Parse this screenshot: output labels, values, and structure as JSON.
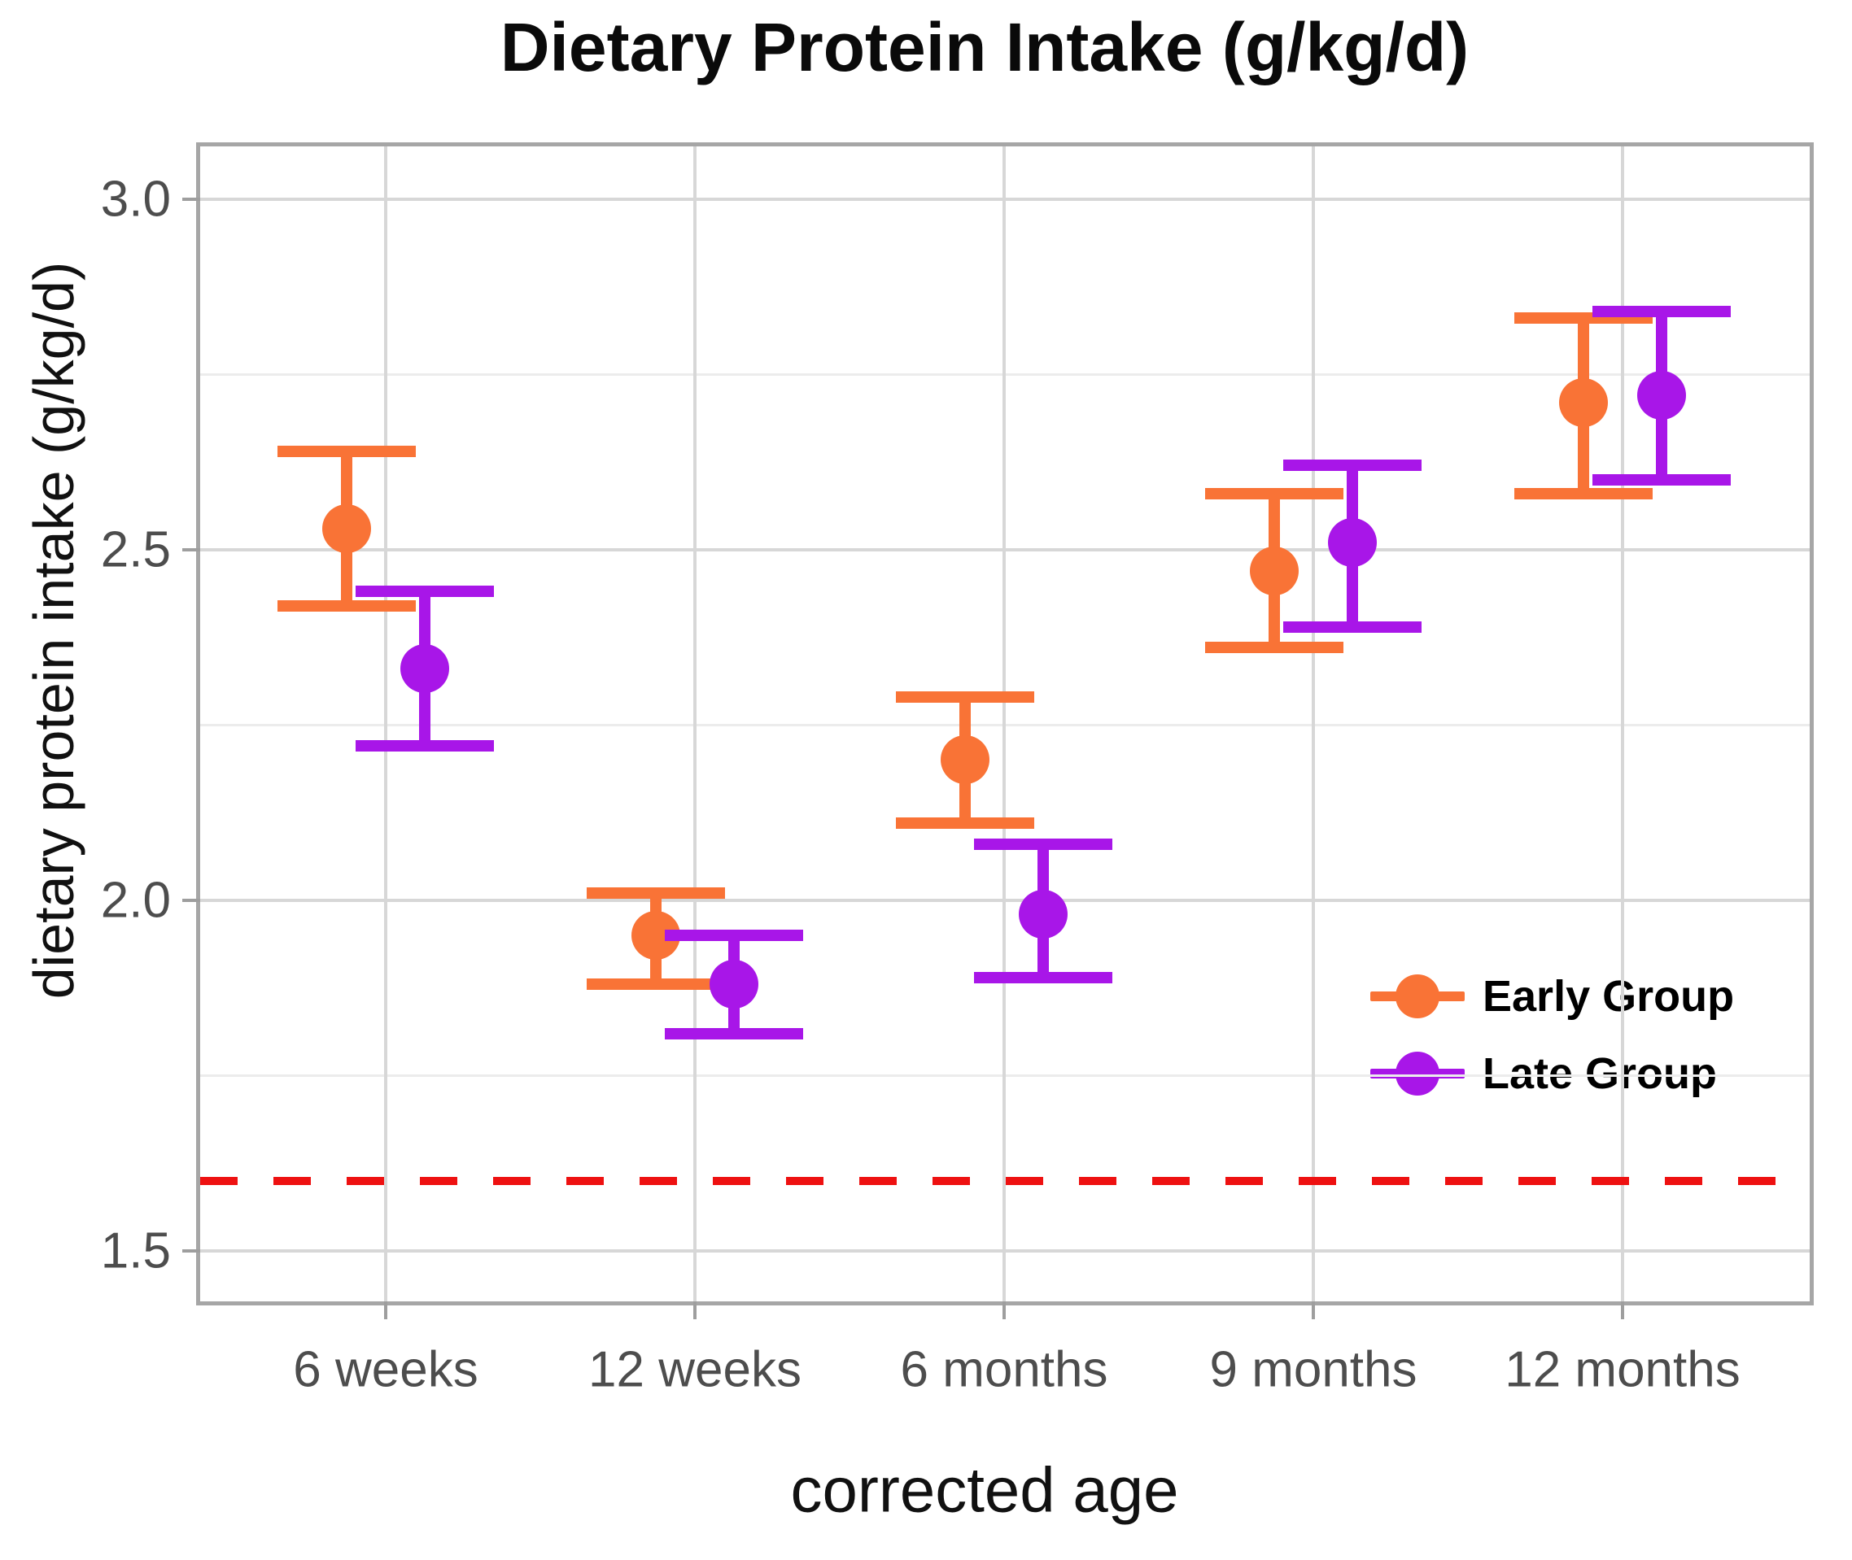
{
  "title": "Dietary Protein Intake (g/kg/d)",
  "axes": {
    "y": {
      "title": "dietary protein intake (g/kg/d)",
      "ticks": [
        {
          "label": "3.0",
          "value": 3.0
        },
        {
          "label": "2.5",
          "value": 2.5
        },
        {
          "label": "2.0",
          "value": 2.0
        },
        {
          "label": "1.5",
          "value": 1.5
        }
      ]
    },
    "x": {
      "title": "corrected age",
      "categories": [
        "6 weeks",
        "12 weeks",
        "6 months",
        "9 months",
        "12 months"
      ]
    }
  },
  "legend": {
    "items": [
      {
        "label": "Early Group",
        "color": "#F97336"
      },
      {
        "label": "Late Group",
        "color": "#A816E8"
      }
    ]
  },
  "colors": {
    "early_group": "#F97336",
    "late_group": "#A816E8",
    "reference_line": "#EE1111",
    "major_grid": "#D7D7D7",
    "minor_grid": "#ECECEC",
    "panel_border": "#A6A6A6",
    "tick_text": "#4D4D4D",
    "tick_mark": "#9E9E9E"
  },
  "chart_data": {
    "type": "scatter",
    "subtype": "dot-with-errorbars",
    "title": "Dietary Protein Intake (g/kg/d)",
    "xlabel": "corrected age",
    "ylabel": "dietary protein intake (g/kg/d)",
    "categories": [
      "6 weeks",
      "12 weeks",
      "6 months",
      "9 months",
      "12 months"
    ],
    "series": [
      {
        "name": "Early Group",
        "color": "#F97336",
        "means": [
          2.53,
          1.95,
          2.2,
          2.47,
          2.71
        ],
        "lower": [
          2.42,
          1.88,
          2.11,
          2.36,
          2.58
        ],
        "upper": [
          2.64,
          2.01,
          2.29,
          2.58,
          2.83
        ]
      },
      {
        "name": "Late Group",
        "color": "#A816E8",
        "means": [
          2.33,
          1.88,
          1.98,
          2.51,
          2.72
        ],
        "lower": [
          2.22,
          1.81,
          1.89,
          2.39,
          2.6
        ],
        "upper": [
          2.44,
          1.95,
          2.08,
          2.62,
          2.84
        ]
      }
    ],
    "reference_line": {
      "value": 1.6,
      "color": "#EE1111",
      "style": "dashed"
    },
    "ylim": [
      1.428,
      3.075
    ],
    "yticks": [
      1.5,
      2.0,
      2.5,
      3.0
    ],
    "yticks_minor": [
      1.75,
      2.25,
      2.75
    ],
    "grid": true,
    "legend_position": "inside bottom-right"
  }
}
